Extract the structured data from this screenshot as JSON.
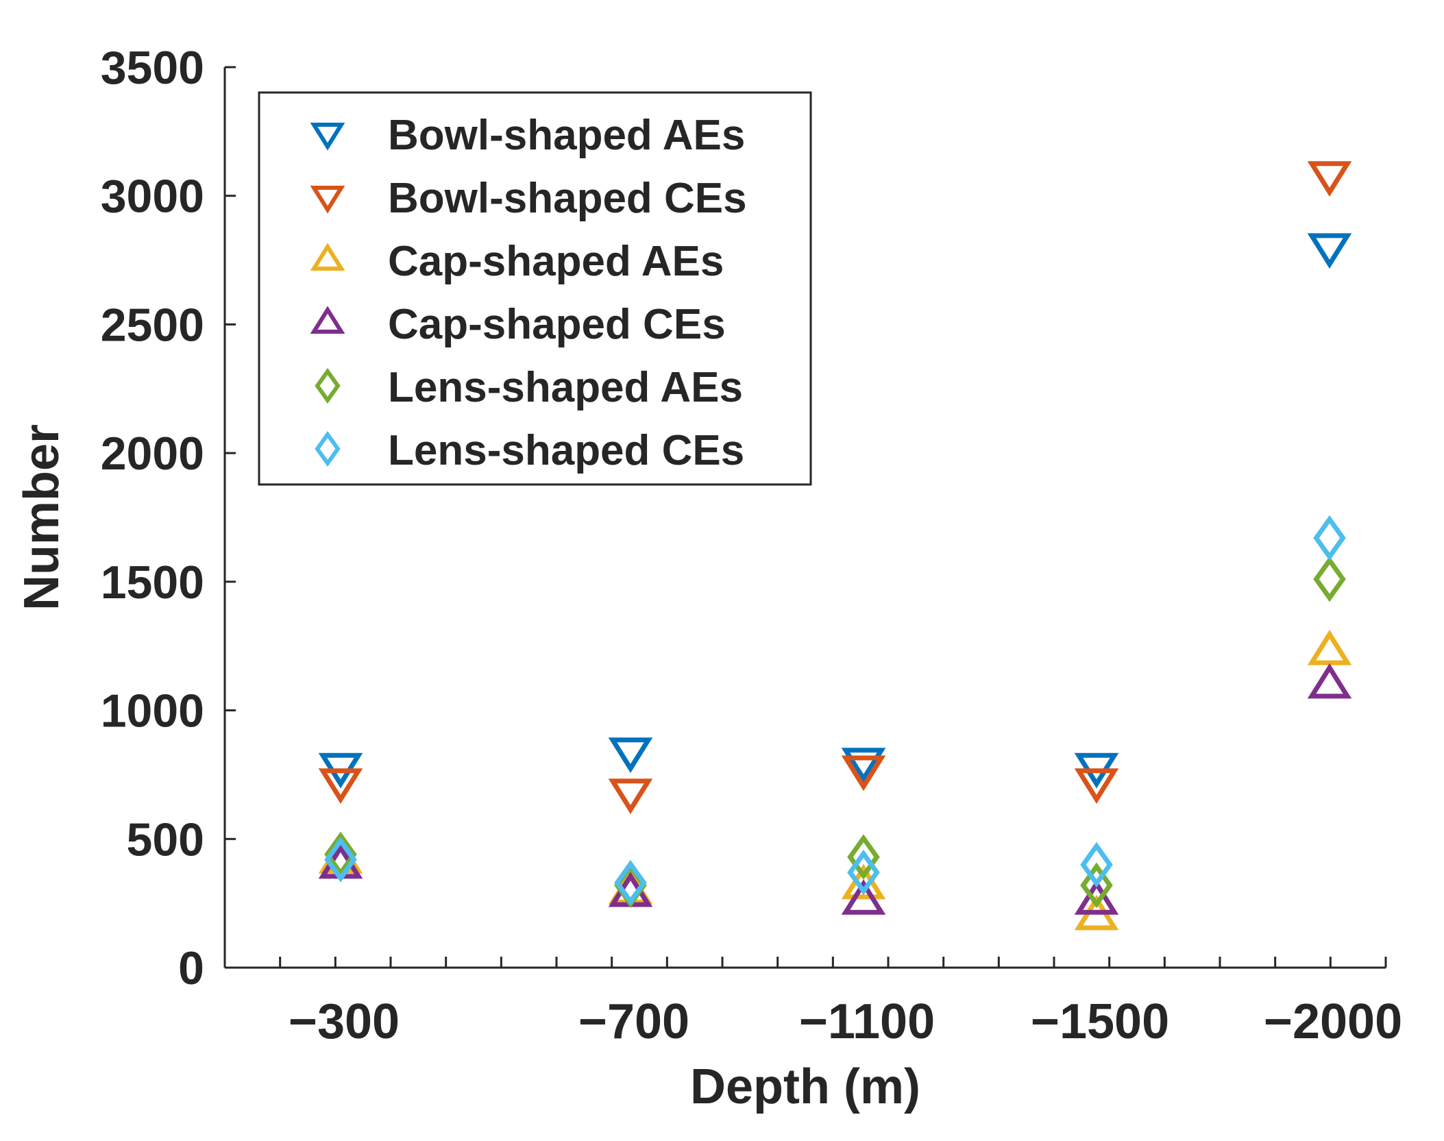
{
  "chart_data": {
    "type": "scatter",
    "title": "",
    "xlabel": "Depth (m)",
    "ylabel": "Number",
    "categories": [
      "−300",
      "−700",
      "−1100",
      "−1500",
      "−2000"
    ],
    "ylim": [
      0,
      3500
    ],
    "yticks": [
      "0",
      "500",
      "1000",
      "1500",
      "2000",
      "2500",
      "3000",
      "3500"
    ],
    "grid": false,
    "legend_position": "top-left",
    "series": [
      {
        "name": "Bowl-shaped AEs",
        "marker": "triangle-down",
        "color": "#0072BD",
        "values": [
          780,
          840,
          800,
          780,
          2800
        ]
      },
      {
        "name": "Bowl-shaped CEs",
        "marker": "triangle-down",
        "color": "#D95319",
        "values": [
          720,
          680,
          770,
          720,
          3080
        ]
      },
      {
        "name": "Cap-shaped AEs",
        "marker": "triangle-up",
        "color": "#EDB120",
        "values": [
          420,
          300,
          320,
          200,
          1230
        ]
      },
      {
        "name": "Cap-shaped CEs",
        "marker": "triangle-up",
        "color": "#7E2F8E",
        "values": [
          400,
          290,
          260,
          260,
          1100
        ]
      },
      {
        "name": "Lens-shaped AEs",
        "marker": "diamond",
        "color": "#77AC30",
        "values": [
          440,
          320,
          430,
          320,
          1510
        ]
      },
      {
        "name": "Lens-shaped CEs",
        "marker": "diamond",
        "color": "#4DBEEE",
        "values": [
          420,
          330,
          370,
          400,
          1670
        ]
      }
    ]
  }
}
